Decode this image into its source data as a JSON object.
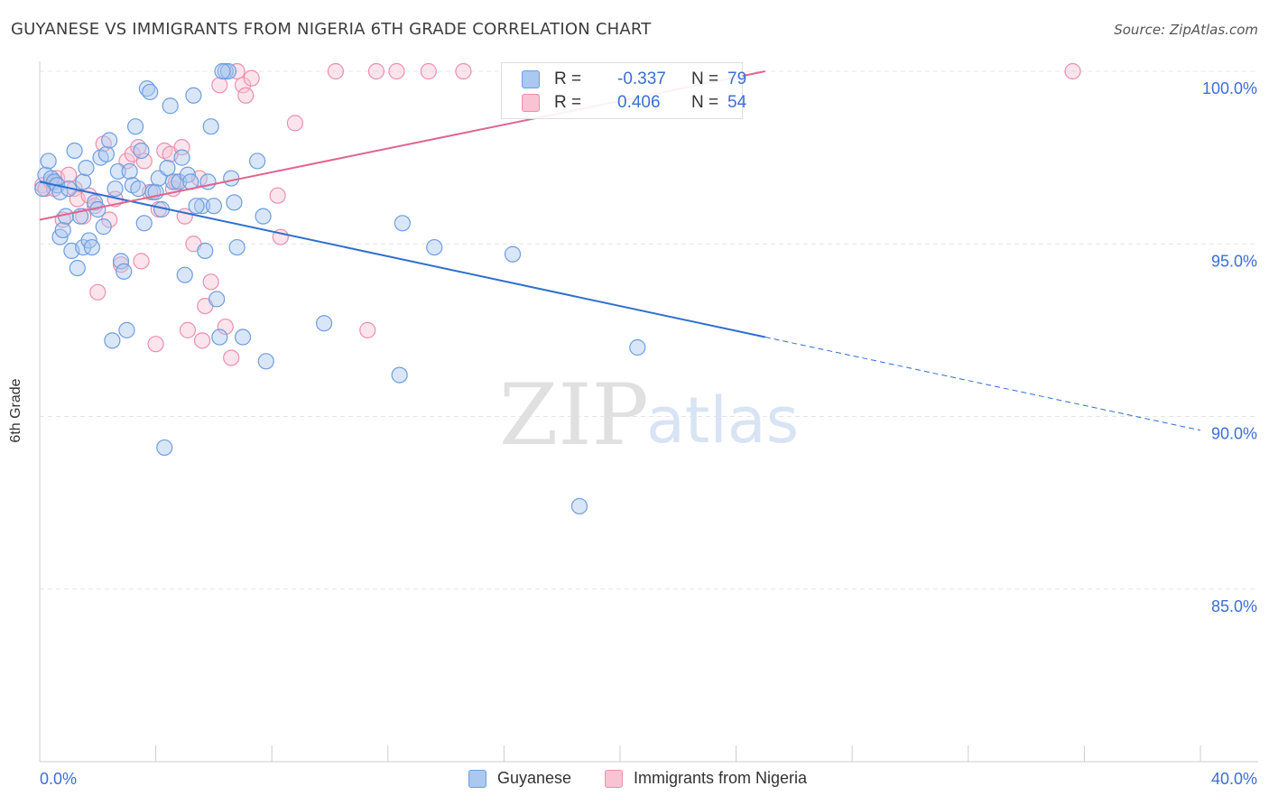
{
  "title": "GUYANESE VS IMMIGRANTS FROM NIGERIA 6TH GRADE CORRELATION CHART",
  "source": "Source: ZipAtlas.com",
  "watermark": {
    "zip": "ZIP",
    "atlas": "atlas"
  },
  "legend": {
    "r_label": "R =",
    "n_label": "N =",
    "rows": [
      {
        "series": "Guyanese",
        "r": "-0.337",
        "n": "79",
        "fill": "#aac8f0",
        "stroke": "#6d9ee0"
      },
      {
        "series": "Immigrants from Nigeria",
        "r": "0.406",
        "n": "54",
        "fill": "#f8c4d4",
        "stroke": "#ec8fac"
      }
    ]
  },
  "chart_data": {
    "type": "scatter",
    "title": "GUYANESE VS IMMIGRANTS FROM NIGERIA 6TH GRADE CORRELATION CHART",
    "xlabel": "",
    "ylabel": "6th Grade",
    "xlim": [
      0,
      40
    ],
    "ylim": [
      80.5,
      100.6
    ],
    "x_tick_labels": [
      "0.0%",
      "40.0%"
    ],
    "y_ticks": [
      85,
      90,
      95,
      100
    ],
    "y_tick_labels": [
      "85.0%",
      "90.0%",
      "95.0%",
      "100.0%"
    ],
    "grid": true,
    "legend_position": "top-center",
    "colors": {
      "guyanese": "#6d9ee0",
      "guyanese_line": "#2f6fce",
      "nigeria": "#ec8fac",
      "nigeria_line": "#e0658f",
      "tick_label": "#3b6fd4"
    },
    "series": [
      {
        "name": "Guyanese",
        "trend": {
          "x0": 0,
          "y0": 96.8,
          "x1": 25,
          "y1": 92.3,
          "dashed_to_x": 40,
          "dashed_to_y": 89.6
        },
        "points": [
          [
            0.1,
            96.6
          ],
          [
            0.2,
            97.0
          ],
          [
            0.3,
            97.4
          ],
          [
            0.4,
            96.9
          ],
          [
            0.5,
            96.8
          ],
          [
            0.6,
            96.7
          ],
          [
            0.7,
            96.5
          ],
          [
            0.7,
            95.2
          ],
          [
            0.8,
            95.4
          ],
          [
            0.9,
            95.8
          ],
          [
            1.0,
            96.6
          ],
          [
            1.1,
            94.8
          ],
          [
            1.2,
            97.7
          ],
          [
            1.3,
            94.3
          ],
          [
            1.4,
            95.8
          ],
          [
            1.5,
            96.8
          ],
          [
            1.5,
            94.9
          ],
          [
            1.6,
            97.2
          ],
          [
            1.7,
            95.1
          ],
          [
            1.8,
            94.9
          ],
          [
            1.9,
            96.2
          ],
          [
            2.0,
            96.0
          ],
          [
            2.1,
            97.5
          ],
          [
            2.2,
            95.5
          ],
          [
            2.3,
            97.6
          ],
          [
            2.4,
            98.0
          ],
          [
            2.5,
            92.2
          ],
          [
            2.6,
            96.6
          ],
          [
            2.7,
            97.1
          ],
          [
            2.8,
            94.5
          ],
          [
            2.9,
            94.2
          ],
          [
            3.0,
            92.5
          ],
          [
            3.1,
            97.1
          ],
          [
            3.2,
            96.7
          ],
          [
            3.3,
            98.4
          ],
          [
            3.4,
            96.6
          ],
          [
            3.5,
            97.7
          ],
          [
            3.6,
            95.6
          ],
          [
            3.7,
            99.5
          ],
          [
            3.8,
            99.4
          ],
          [
            3.9,
            96.5
          ],
          [
            4.0,
            96.5
          ],
          [
            4.1,
            96.9
          ],
          [
            4.2,
            96.0
          ],
          [
            4.3,
            89.1
          ],
          [
            4.4,
            97.2
          ],
          [
            4.5,
            99.0
          ],
          [
            4.6,
            96.8
          ],
          [
            4.8,
            96.8
          ],
          [
            4.9,
            97.5
          ],
          [
            5.0,
            94.1
          ],
          [
            5.1,
            97.0
          ],
          [
            5.2,
            96.8
          ],
          [
            5.6,
            96.1
          ],
          [
            5.8,
            96.8
          ],
          [
            6.0,
            96.1
          ],
          [
            5.4,
            96.1
          ],
          [
            5.3,
            99.3
          ],
          [
            5.7,
            94.8
          ],
          [
            5.9,
            98.4
          ],
          [
            6.1,
            93.4
          ],
          [
            6.2,
            92.3
          ],
          [
            6.4,
            100.0
          ],
          [
            6.5,
            100.0
          ],
          [
            6.6,
            96.9
          ],
          [
            6.7,
            96.2
          ],
          [
            6.8,
            94.9
          ],
          [
            7.0,
            92.3
          ],
          [
            7.5,
            97.4
          ],
          [
            7.7,
            95.8
          ],
          [
            7.8,
            91.6
          ],
          [
            9.8,
            92.7
          ],
          [
            12.4,
            91.2
          ],
          [
            12.5,
            95.6
          ],
          [
            13.6,
            94.9
          ],
          [
            16.3,
            94.7
          ],
          [
            18.6,
            87.4
          ],
          [
            20.6,
            92.0
          ],
          [
            6.3,
            100.0
          ]
        ]
      },
      {
        "name": "Immigrants from Nigeria",
        "trend": {
          "x0": 0,
          "y0": 95.7,
          "x1": 25,
          "y1": 100.0
        },
        "points": [
          [
            0.1,
            96.7
          ],
          [
            0.2,
            96.6
          ],
          [
            0.4,
            96.8
          ],
          [
            0.5,
            96.6
          ],
          [
            0.6,
            96.9
          ],
          [
            0.8,
            95.7
          ],
          [
            1.0,
            97.0
          ],
          [
            1.2,
            96.6
          ],
          [
            1.3,
            96.3
          ],
          [
            1.5,
            95.8
          ],
          [
            1.7,
            96.4
          ],
          [
            1.9,
            96.1
          ],
          [
            2.0,
            93.6
          ],
          [
            2.2,
            97.9
          ],
          [
            2.4,
            95.7
          ],
          [
            2.6,
            96.3
          ],
          [
            2.8,
            94.4
          ],
          [
            3.0,
            97.4
          ],
          [
            3.2,
            97.6
          ],
          [
            3.4,
            97.8
          ],
          [
            3.5,
            94.5
          ],
          [
            3.6,
            97.4
          ],
          [
            3.8,
            96.5
          ],
          [
            4.0,
            92.1
          ],
          [
            4.1,
            96.0
          ],
          [
            4.3,
            97.7
          ],
          [
            4.5,
            97.6
          ],
          [
            4.6,
            96.6
          ],
          [
            4.7,
            96.8
          ],
          [
            4.9,
            97.8
          ],
          [
            5.0,
            95.8
          ],
          [
            5.1,
            92.5
          ],
          [
            5.3,
            95.0
          ],
          [
            5.5,
            96.9
          ],
          [
            5.6,
            92.2
          ],
          [
            5.7,
            93.2
          ],
          [
            5.9,
            93.9
          ],
          [
            6.2,
            99.6
          ],
          [
            6.4,
            92.6
          ],
          [
            6.6,
            91.7
          ],
          [
            6.8,
            100.0
          ],
          [
            7.0,
            99.6
          ],
          [
            7.1,
            99.3
          ],
          [
            7.3,
            99.8
          ],
          [
            8.2,
            96.4
          ],
          [
            8.3,
            95.2
          ],
          [
            8.8,
            98.5
          ],
          [
            10.2,
            100.0
          ],
          [
            11.3,
            92.5
          ],
          [
            11.6,
            100.0
          ],
          [
            12.3,
            100.0
          ],
          [
            13.4,
            100.0
          ],
          [
            14.6,
            100.0
          ],
          [
            35.6,
            100.0
          ]
        ]
      }
    ]
  }
}
